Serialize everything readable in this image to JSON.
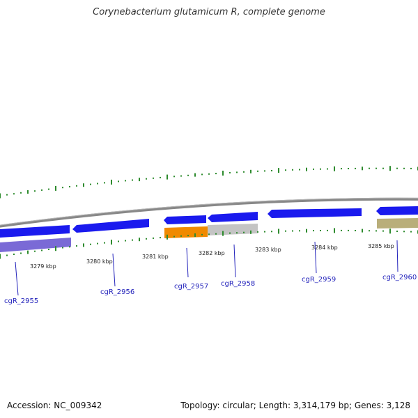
{
  "title": "Corynebacterium glutamicum R, complete genome",
  "footer": {
    "accession": "Accession: NC_009342",
    "summary": "Topology: circular; Length: 3,314,179 bp; Genes: 3,128"
  },
  "colors": {
    "backbone": "#888888",
    "tick": "#2e8b2e",
    "gene_blue": "#1a1aee",
    "gene_purple": "#7a6ad6",
    "gene_orange": "#f08a00",
    "gene_gray": "#c4c4c4",
    "gene_olive": "#b9ae7a",
    "label": "#2222bb"
  },
  "scale": {
    "labels": [
      "3279 kbp",
      "3280 kbp",
      "3281 kbp",
      "3282 kbp",
      "3283 kbp",
      "3284 kbp",
      "3285 kbp"
    ]
  },
  "genes": [
    {
      "name": "cgR_2955",
      "color": "gene_blue"
    },
    {
      "name": "cgR_2956",
      "color": "gene_blue"
    },
    {
      "name": "cgR_2957",
      "color": "gene_orange"
    },
    {
      "name": "cgR_2958",
      "color": "gene_gray"
    },
    {
      "name": "cgR_2959",
      "color": "gene_blue"
    },
    {
      "name": "cgR_2960",
      "color": "gene_olive"
    }
  ]
}
